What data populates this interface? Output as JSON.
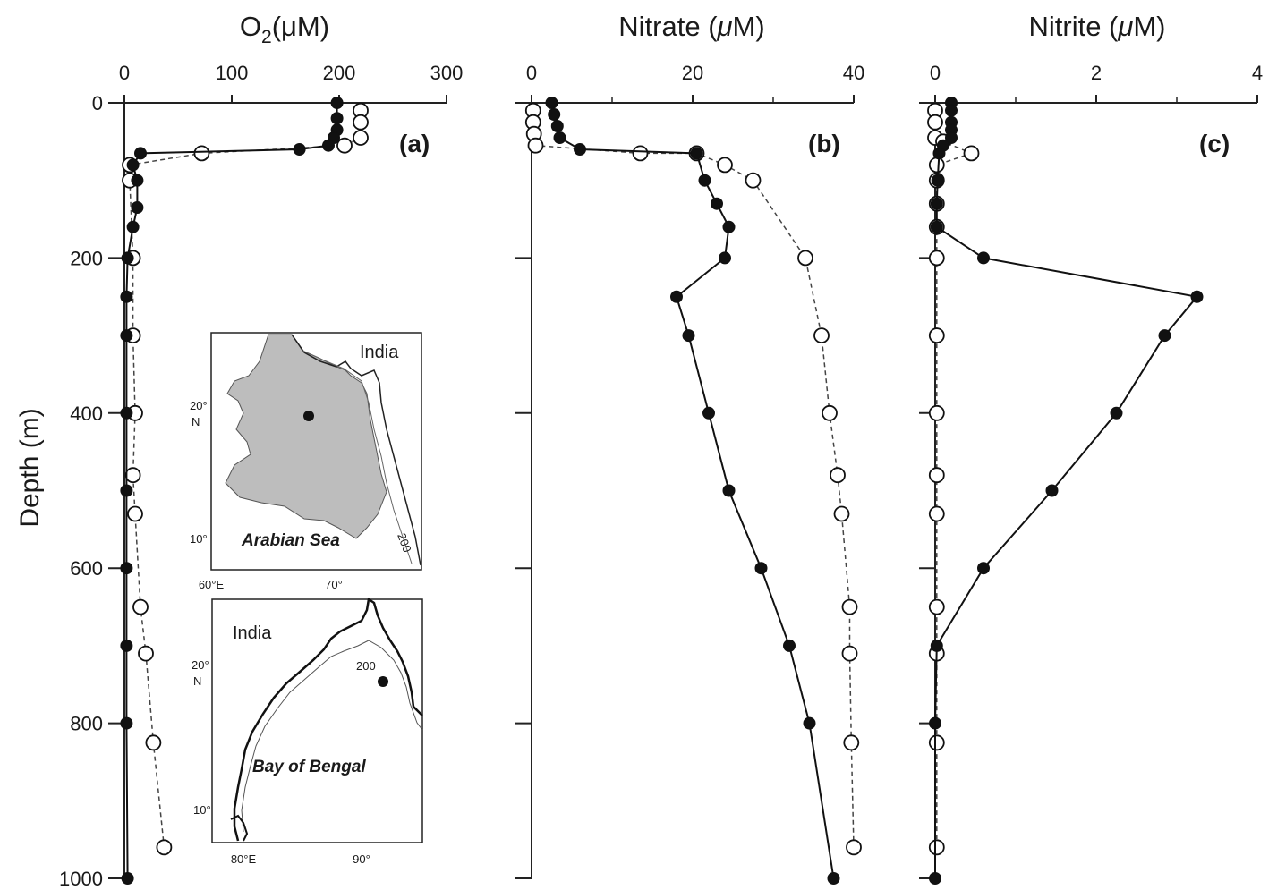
{
  "chart_data": [
    {
      "type": "line",
      "panel": "(a)",
      "title": "O₂(μM)",
      "title_main": "O",
      "title_sub": "2",
      "title_rest": "(μM)",
      "ylabel": "Depth (m)",
      "xlim": [
        0,
        300
      ],
      "ylim": [
        1000,
        0
      ],
      "x_ticks": [
        "0",
        "100",
        "200",
        "300"
      ],
      "x_tick_values": [
        0,
        100,
        200,
        300
      ],
      "y_ticks": [
        "0",
        "200",
        "400",
        "600",
        "800",
        "1000"
      ],
      "y_tick_values": [
        0,
        200,
        400,
        600,
        800,
        1000
      ],
      "series": [
        {
          "marker": "filled",
          "line": "solid",
          "x": [
            198,
            198,
            198,
            195,
            190,
            163,
            15,
            8,
            12,
            12,
            8,
            3,
            2,
            2,
            2,
            2,
            2,
            2,
            2,
            3
          ],
          "y": [
            0,
            20,
            35,
            45,
            55,
            60,
            65,
            80,
            100,
            135,
            160,
            200,
            250,
            300,
            400,
            500,
            600,
            700,
            800,
            1000
          ]
        },
        {
          "marker": "open",
          "line": "dashed",
          "x": [
            220,
            220,
            220,
            205,
            72,
            5,
            5,
            8,
            8,
            10,
            8,
            10,
            15,
            20,
            27,
            37
          ],
          "y": [
            10,
            25,
            45,
            55,
            65,
            80,
            100,
            200,
            300,
            400,
            480,
            530,
            650,
            710,
            825,
            960
          ]
        }
      ]
    },
    {
      "type": "line",
      "panel": "(b)",
      "title": "Nitrate (μM)",
      "title_main": "Nitrate (",
      "title_mu": "μ",
      "title_rest": "M)",
      "xlim": [
        0,
        40
      ],
      "ylim": [
        1000,
        0
      ],
      "x_ticks": [
        "0",
        "20",
        "40"
      ],
      "x_tick_values": [
        0,
        20,
        40
      ],
      "x_minor_tick_values": [
        10,
        30
      ],
      "series": [
        {
          "marker": "filled",
          "line": "solid",
          "x": [
            2.5,
            2.8,
            3.2,
            3.5,
            6,
            20.5,
            21.5,
            23,
            24.5,
            24,
            18,
            19.5,
            22,
            24.5,
            28.5,
            32,
            34.5,
            37.5
          ],
          "y": [
            0,
            15,
            30,
            45,
            60,
            65,
            100,
            130,
            160,
            200,
            250,
            300,
            400,
            500,
            600,
            700,
            800,
            1000
          ]
        },
        {
          "marker": "open",
          "line": "dashed",
          "x": [
            0.2,
            0.2,
            0.3,
            0.5,
            13.5,
            20.5,
            24,
            27.5,
            34,
            36,
            37,
            38,
            38.5,
            39.5,
            39.5,
            39.7,
            40
          ],
          "y": [
            10,
            25,
            40,
            55,
            65,
            65,
            80,
            100,
            200,
            300,
            400,
            480,
            530,
            650,
            710,
            825,
            960
          ]
        }
      ]
    },
    {
      "type": "line",
      "panel": "(c)",
      "title": "Nitrite (μM)",
      "title_main": "Nitrite (",
      "title_mu": "μ",
      "title_rest": "M)",
      "xlim": [
        0,
        4
      ],
      "ylim": [
        1000,
        0
      ],
      "x_ticks": [
        "0",
        "2",
        "4"
      ],
      "x_tick_values": [
        0,
        2,
        4
      ],
      "x_minor_tick_values": [
        1,
        3
      ],
      "series": [
        {
          "marker": "filled",
          "line": "solid",
          "x": [
            0.2,
            0.2,
            0.2,
            0.2,
            0.2,
            0.1,
            0.05,
            0.03,
            0.02,
            0.02,
            0.6,
            3.25,
            2.85,
            2.25,
            1.45,
            0.6,
            0.02,
            0,
            0
          ],
          "y": [
            0,
            10,
            25,
            35,
            45,
            55,
            65,
            100,
            130,
            160,
            200,
            250,
            300,
            400,
            500,
            600,
            700,
            800,
            1000
          ]
        },
        {
          "marker": "open",
          "line": "dashed",
          "x": [
            0,
            0,
            0,
            0.1,
            0.45,
            0.02,
            0.02,
            0.02,
            0.02,
            0.02,
            0.02,
            0.02,
            0.02,
            0.02,
            0.02,
            0.02,
            0.02,
            0.02
          ],
          "y": [
            10,
            25,
            45,
            50,
            65,
            80,
            100,
            130,
            160,
            200,
            300,
            400,
            480,
            530,
            650,
            710,
            825,
            960
          ]
        }
      ]
    }
  ],
  "inset_arabian": {
    "country_label": "India",
    "sea_label": "Arabian Sea",
    "contour_label": "200",
    "lat_tick_20": "20°",
    "lat_hemi": "N",
    "lat_tick_10": "10°",
    "lon_tick_60": "60°E",
    "lon_tick_70": "70°",
    "land_color": "#ffffff",
    "sea_color": "#bdbdbd"
  },
  "inset_bengal": {
    "country_label": "India",
    "sea_label": "Bay of Bengal",
    "contour_label": "200",
    "lat_tick_20": "20°",
    "lat_hemi": "N",
    "lat_tick_10": "10°",
    "lon_tick_80": "80°E",
    "lon_tick_90": "90°"
  }
}
